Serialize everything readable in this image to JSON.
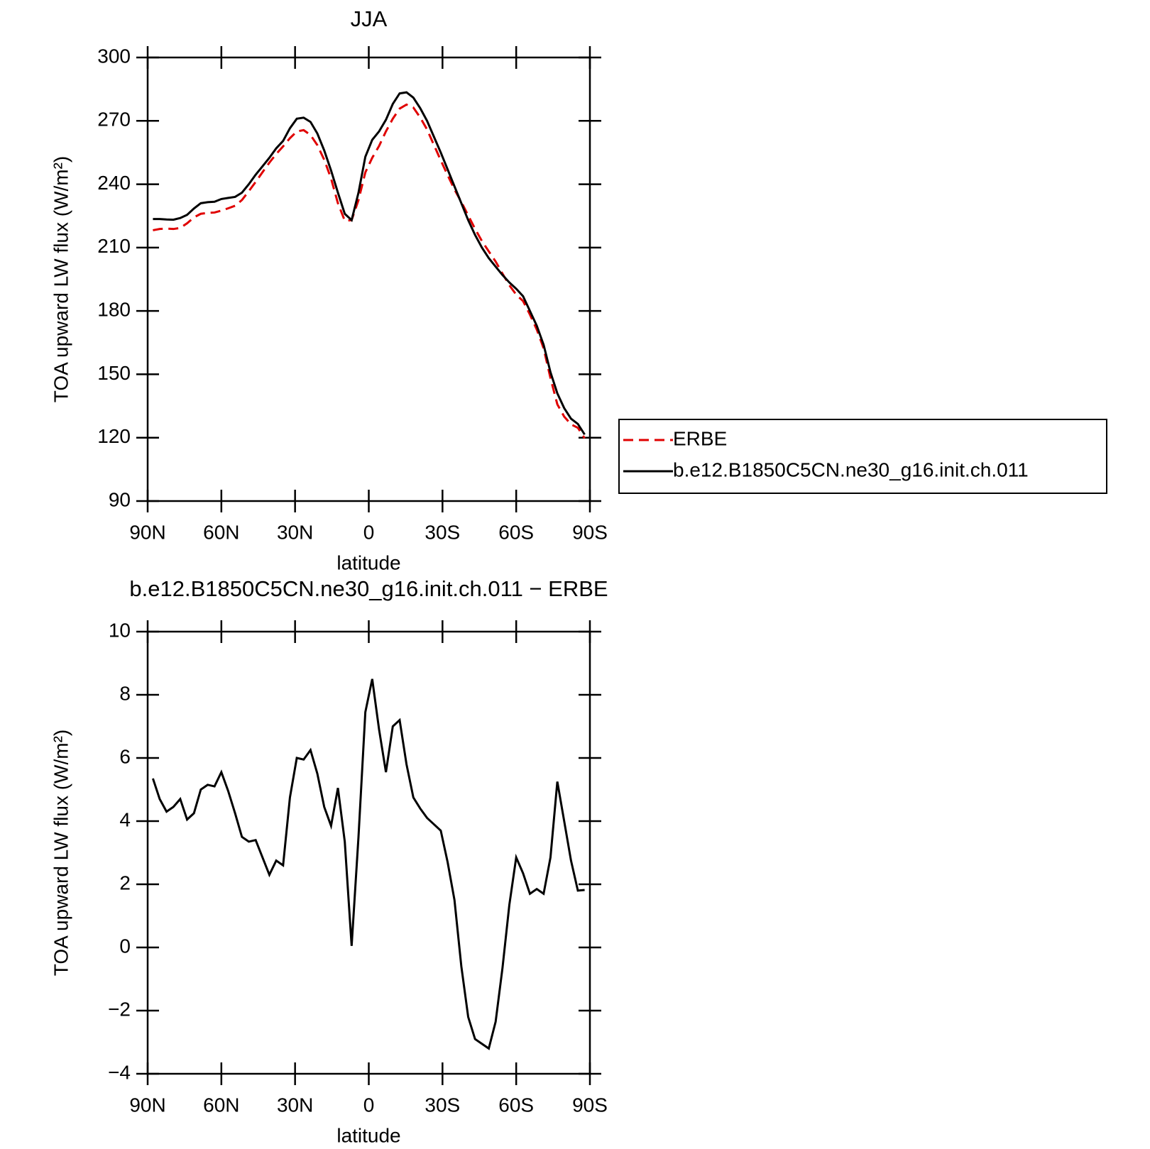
{
  "chart_data": [
    {
      "type": "line",
      "title": "JJA",
      "xlabel": "latitude",
      "ylabel": "TOA upward LW flux (W/m²)",
      "x": [
        87.86,
        85.1,
        82.31,
        79.53,
        76.74,
        73.95,
        71.16,
        68.37,
        65.58,
        62.79,
        60.0,
        57.21,
        54.42,
        51.63,
        48.84,
        46.04,
        43.25,
        40.46,
        37.67,
        34.88,
        32.09,
        29.3,
        26.51,
        23.72,
        20.93,
        18.14,
        15.35,
        12.56,
        9.77,
        6.98,
        4.19,
        1.4,
        -1.4,
        -4.19,
        -6.98,
        -9.77,
        -12.56,
        -15.35,
        -18.14,
        -20.93,
        -23.72,
        -26.51,
        -29.3,
        -32.09,
        -34.88,
        -37.67,
        -40.46,
        -43.25,
        -46.04,
        -48.84,
        -51.63,
        -54.42,
        -57.21,
        -60.0,
        -62.79,
        -65.58,
        -68.37,
        -71.16,
        -73.95,
        -76.74,
        -79.53,
        -82.31,
        -85.1,
        -87.86
      ],
      "series": [
        {
          "name": "ERBE",
          "color": "#e00000",
          "dash": true,
          "values": [
            218.2,
            218.8,
            219.0,
            218.8,
            219.3,
            221.5,
            224.3,
            226.0,
            226.4,
            226.6,
            227.5,
            228.6,
            229.8,
            232.5,
            236.7,
            241.1,
            245.7,
            250.2,
            254.3,
            257.9,
            261.8,
            265.0,
            265.6,
            263.3,
            258.5,
            251.6,
            242.7,
            231.0,
            222.7,
            223.0,
            232.5,
            245.6,
            252.5,
            258.1,
            265.0,
            271.0,
            275.8,
            277.7,
            276.3,
            271.6,
            265.9,
            258.6,
            251.3,
            244.3,
            237.5,
            231.6,
            225.2,
            218.9,
            213.1,
            208.2,
            203.4,
            197.7,
            192.2,
            187.7,
            184.7,
            178.3,
            171.2,
            162.3,
            148.2,
            135.8,
            130.0,
            126.3,
            124.7,
            119.7
          ]
        },
        {
          "name": "b.e12.B1850C5CN.ne30_g16.init.ch.011",
          "color": "#000000",
          "dash": false,
          "values": [
            223.5,
            223.5,
            223.3,
            223.2,
            224,
            225.5,
            228.5,
            231,
            231.5,
            231.7,
            233,
            233.5,
            234,
            236,
            240,
            244.5,
            248.5,
            252.5,
            257,
            260.5,
            266.5,
            271,
            271.5,
            269.5,
            264,
            256,
            246.5,
            236,
            226,
            223,
            236,
            253,
            261,
            265,
            270.5,
            278,
            283,
            283.5,
            281,
            276,
            270,
            262.5,
            255,
            247,
            239,
            231,
            223,
            216,
            210,
            205,
            201,
            197,
            193.5,
            190.5,
            187,
            180,
            173,
            164,
            151,
            141,
            134,
            129,
            126.5,
            121.5
          ]
        }
      ],
      "xlim": [
        90,
        -90
      ],
      "xticks": [
        {
          "value": 90,
          "label": "90N"
        },
        {
          "value": 60,
          "label": "60N"
        },
        {
          "value": 30,
          "label": "30N"
        },
        0,
        {
          "value": -30,
          "label": "30S"
        },
        {
          "value": -60,
          "label": "60S"
        },
        {
          "value": -90,
          "label": "90S"
        }
      ],
      "ylim": [
        90,
        300
      ],
      "yticks": [
        90,
        120,
        150,
        180,
        210,
        240,
        270,
        300
      ],
      "legend": "right"
    },
    {
      "type": "line",
      "title": "b.e12.B1850C5CN.ne30_g16.init.ch.011 − ERBE",
      "xlabel": "latitude",
      "ylabel": "TOA upward LW flux (W/m²)",
      "x": [
        87.86,
        85.1,
        82.31,
        79.53,
        76.74,
        73.95,
        71.16,
        68.37,
        65.58,
        62.79,
        60.0,
        57.21,
        54.42,
        51.63,
        48.84,
        46.04,
        43.25,
        40.46,
        37.67,
        34.88,
        32.09,
        29.3,
        26.51,
        23.72,
        20.93,
        18.14,
        15.35,
        12.56,
        9.77,
        6.98,
        4.19,
        1.4,
        -1.4,
        -4.19,
        -6.98,
        -9.77,
        -12.56,
        -15.35,
        -18.14,
        -20.93,
        -23.72,
        -26.51,
        -29.3,
        -32.09,
        -34.88,
        -37.67,
        -40.46,
        -43.25,
        -46.04,
        -48.84,
        -51.63,
        -54.42,
        -57.21,
        -60.0,
        -62.79,
        -65.58,
        -68.37,
        -71.16,
        -73.95,
        -76.74,
        -79.53,
        -82.31,
        -85.1,
        -87.86
      ],
      "series": [
        {
          "color": "#000000",
          "dash": false,
          "values": [
            5.35,
            4.7,
            4.3,
            4.45,
            4.7,
            4.05,
            4.25,
            5.0,
            5.15,
            5.1,
            5.55,
            4.95,
            4.25,
            3.5,
            3.35,
            3.4,
            2.85,
            2.3,
            2.75,
            2.6,
            4.75,
            6.0,
            5.95,
            6.25,
            5.5,
            4.45,
            3.85,
            5.05,
            3.35,
            0.05,
            3.5,
            7.45,
            8.5,
            6.9,
            5.55,
            7.0,
            7.2,
            5.8,
            4.75,
            4.4,
            4.1,
            3.9,
            3.7,
            2.7,
            1.5,
            -0.6,
            -2.2,
            -2.9,
            -3.05,
            -3.2,
            -2.35,
            -0.65,
            1.35,
            2.85,
            2.35,
            1.7,
            1.85,
            1.7,
            2.85,
            5.25,
            4.0,
            2.75,
            1.8,
            1.82
          ]
        }
      ],
      "xlim": [
        90,
        -90
      ],
      "xticks": [
        {
          "value": 90,
          "label": "90N"
        },
        {
          "value": 60,
          "label": "60N"
        },
        {
          "value": 30,
          "label": "30N"
        },
        0,
        {
          "value": -30,
          "label": "30S"
        },
        {
          "value": -60,
          "label": "60S"
        },
        {
          "value": -90,
          "label": "90S"
        }
      ],
      "ylim": [
        -4,
        10
      ],
      "yticks": [
        {
          "value": -4,
          "label": "−4"
        },
        {
          "value": -2,
          "label": "−2"
        },
        0,
        2,
        4,
        6,
        8,
        10
      ]
    }
  ]
}
